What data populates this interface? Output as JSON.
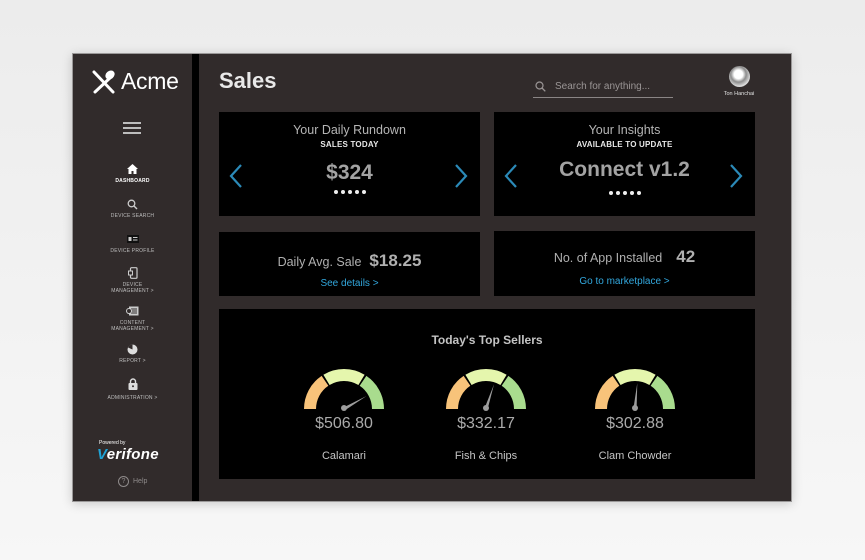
{
  "app": {
    "brand": "Acme",
    "page_title": "Sales"
  },
  "sidebar": {
    "items": [
      {
        "label": "DASHBOARD",
        "icon": "home-icon",
        "active": true
      },
      {
        "label": "DEVICE SEARCH",
        "icon": "search-icon"
      },
      {
        "label": "DEVICE PROFILE",
        "icon": "profile-card-icon"
      },
      {
        "label_line1": "DEVICE",
        "label_line2": "MANAGEMENT >",
        "icon": "device-icon"
      },
      {
        "label_line1": "CONTENT",
        "label_line2": "MANAGEMENT >",
        "icon": "content-icon"
      },
      {
        "label": "REPORT >",
        "icon": "pie-chart-icon"
      },
      {
        "label": "ADMINISTRATION >",
        "icon": "lock-icon"
      }
    ],
    "powered_by": "Powered by",
    "vendor_v": "V",
    "vendor_rest": "erifone",
    "help": "Help"
  },
  "header": {
    "search_placeholder": "Search for anything...",
    "user_name": "Ton Hanchai"
  },
  "cards": {
    "rundown": {
      "title": "Your Daily Rundown",
      "subtitle": "SALES TODAY",
      "value": "$324",
      "pages": 5
    },
    "insights": {
      "title": "Your Insights",
      "subtitle": "AVAILABLE TO UPDATE",
      "value": "Connect v1.2",
      "pages": 5
    },
    "avg_sale": {
      "label": "Daily Avg. Sale",
      "value": "$18.25",
      "link": "See details >"
    },
    "apps": {
      "label": "No. of App Installed",
      "value": "42",
      "link": "Go to marketplace >"
    }
  },
  "top_sellers": {
    "title": "Today's Top Sellers",
    "items": [
      {
        "name": "Calamari",
        "value": "$506.80",
        "needle_deg": 60
      },
      {
        "name": "Fish & Chips",
        "value": "$332.17",
        "needle_deg": 18
      },
      {
        "name": "Clam Chowder",
        "value": "$302.88",
        "needle_deg": 5
      }
    ]
  },
  "colors": {
    "accent": "#32a7dd",
    "arrow": "#2b8ab8",
    "gauge_low": "#f8c37a",
    "gauge_mid": "#e5f6ad",
    "gauge_high": "#a9dc8e"
  }
}
